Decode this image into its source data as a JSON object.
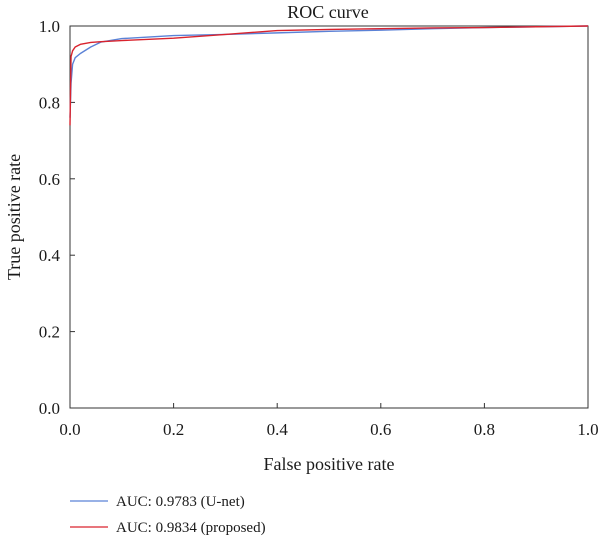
{
  "chart_data": {
    "type": "line",
    "title": "ROC curve",
    "xlabel": "False positive rate",
    "ylabel": "True positive rate",
    "xlim": [
      0.0,
      1.0
    ],
    "ylim": [
      0.0,
      1.0
    ],
    "xticks": [
      "0.0",
      "0.2",
      "0.4",
      "0.6",
      "0.8",
      "1.0"
    ],
    "yticks": [
      "0.0",
      "0.2",
      "0.4",
      "0.6",
      "0.8",
      "1.0"
    ],
    "grid": false,
    "legend_position": "bottom-left-outside",
    "series": [
      {
        "name": "AUC: 0.9783 (U-net)",
        "color": "#5b82d6",
        "x": [
          0.0,
          0.002,
          0.005,
          0.01,
          0.02,
          0.04,
          0.06,
          0.1,
          0.2,
          0.3,
          0.4,
          0.5,
          0.6,
          0.7,
          0.8,
          0.9,
          1.0
        ],
        "y": [
          0.76,
          0.85,
          0.9,
          0.917,
          0.928,
          0.945,
          0.958,
          0.967,
          0.975,
          0.978,
          0.982,
          0.986,
          0.989,
          0.993,
          0.996,
          0.998,
          1.0
        ]
      },
      {
        "name": "AUC: 0.9834 (proposed)",
        "color": "#d9232d",
        "x": [
          0.0,
          0.002,
          0.005,
          0.01,
          0.02,
          0.04,
          0.06,
          0.1,
          0.2,
          0.3,
          0.4,
          0.5,
          0.6,
          0.7,
          0.8,
          0.9,
          1.0
        ],
        "y": [
          0.74,
          0.92,
          0.935,
          0.945,
          0.952,
          0.957,
          0.959,
          0.962,
          0.968,
          0.978,
          0.988,
          0.991,
          0.993,
          0.995,
          0.996,
          0.998,
          1.0
        ]
      }
    ]
  }
}
